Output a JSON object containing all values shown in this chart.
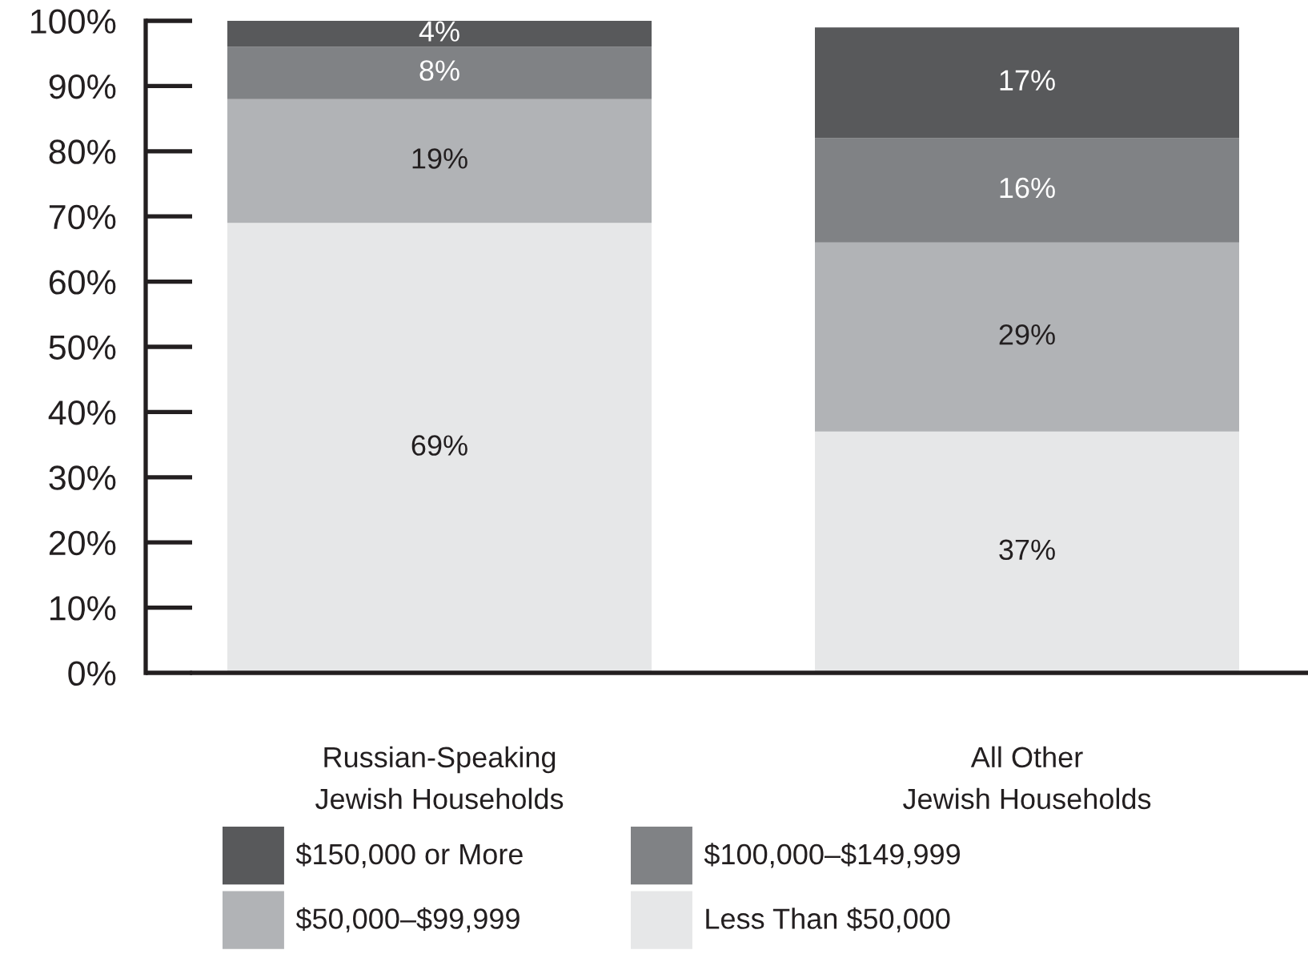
{
  "chart_data": {
    "type": "bar",
    "stacked": true,
    "categories": [
      "Russian-Speaking\nJewish Households",
      "All Other\nJewish Households"
    ],
    "series": [
      {
        "name": "Less Than $50,000",
        "color": "#e6e7e8",
        "values": [
          69,
          37
        ],
        "value_labels": [
          "69%",
          "37%"
        ]
      },
      {
        "name": "$50,000–$99,999",
        "color": "#b1b3b6",
        "values": [
          19,
          29
        ],
        "value_labels": [
          "19%",
          "29%"
        ]
      },
      {
        "name": "$100,000–$149,999",
        "color": "#808285",
        "values": [
          8,
          16
        ],
        "value_labels": [
          "8%",
          "16%"
        ]
      },
      {
        "name": "$150,000 or More",
        "color": "#58595b",
        "values": [
          4,
          17
        ],
        "value_labels": [
          "4%",
          "17%"
        ]
      }
    ],
    "ylim": [
      0,
      100
    ],
    "yticks": [
      {
        "value": 0,
        "label": "0%"
      },
      {
        "value": 10,
        "label": "10%"
      },
      {
        "value": 20,
        "label": "20%"
      },
      {
        "value": 30,
        "label": "30%"
      },
      {
        "value": 40,
        "label": "40%"
      },
      {
        "value": 50,
        "label": "50%"
      },
      {
        "value": 60,
        "label": "60%"
      },
      {
        "value": 70,
        "label": "70%"
      },
      {
        "value": 80,
        "label": "80%"
      },
      {
        "value": 90,
        "label": "90%"
      },
      {
        "value": 100,
        "label": "100%"
      }
    ],
    "legend": "bottom"
  }
}
